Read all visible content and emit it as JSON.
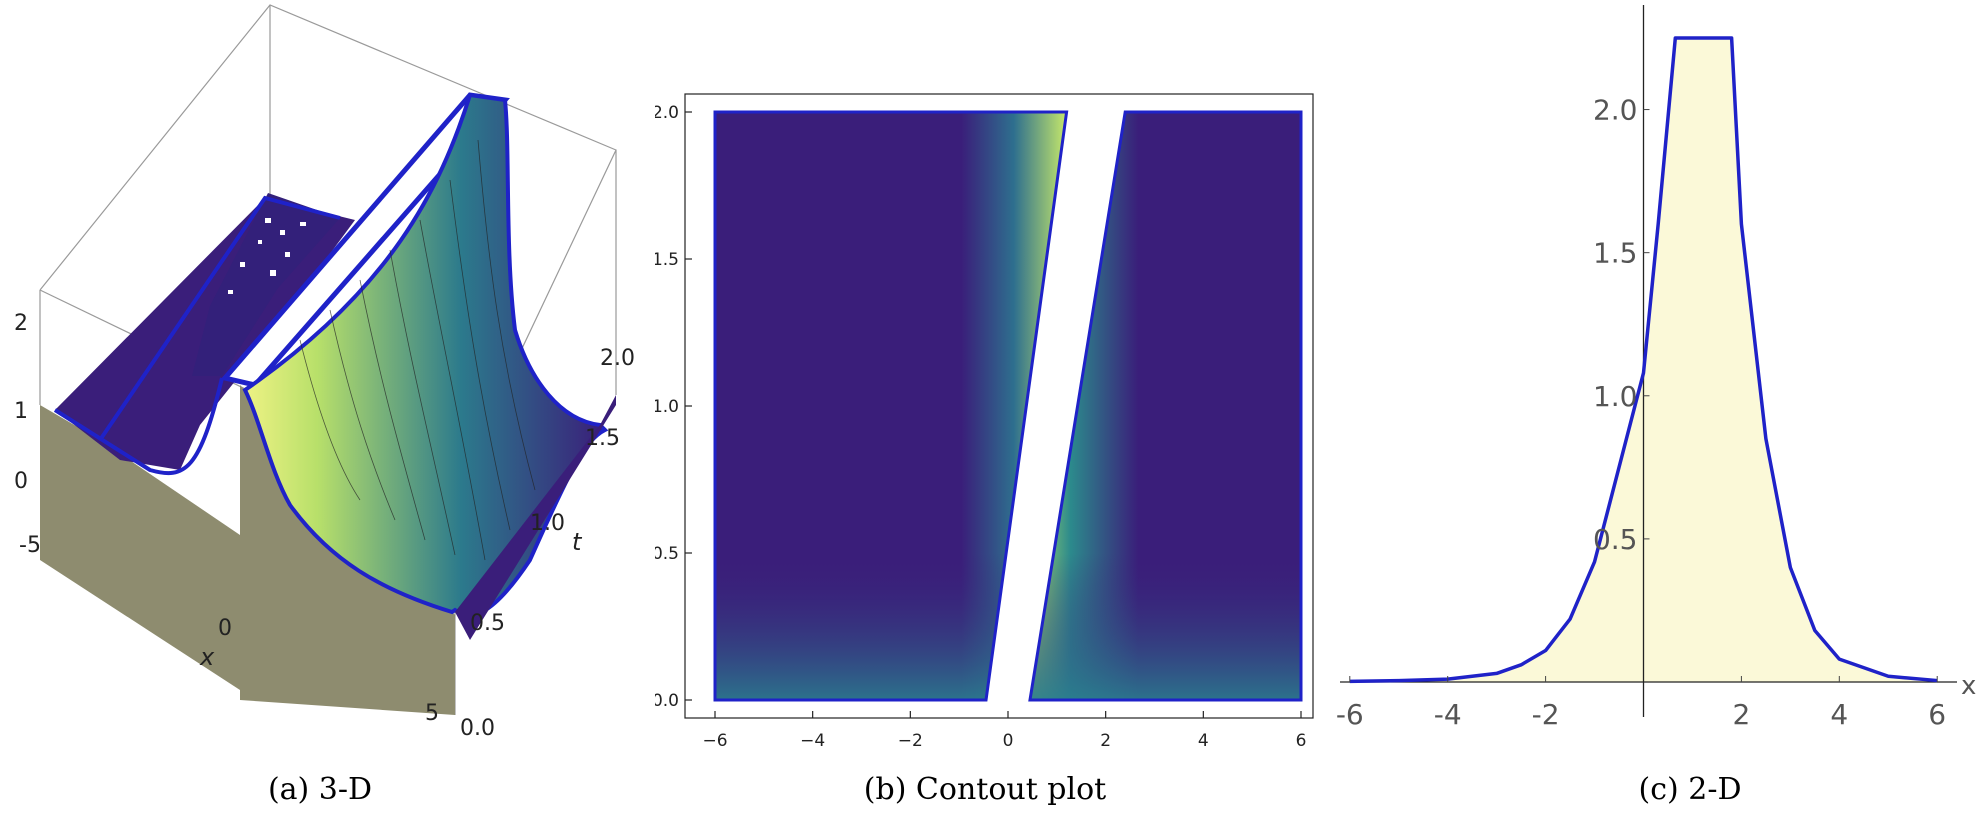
{
  "captions": {
    "a": "(a) 3-D",
    "b": "(b) Contout plot",
    "c": "(c) 2-D"
  },
  "colors": {
    "surface_low": "#3a1e7a",
    "surface_high": "#e9ef78",
    "curve": "#1f22c8",
    "fill_2d": "#fbf9d8",
    "wall": "#8e8c6f"
  },
  "chart_data": [
    {
      "type": "surface3d",
      "title": "",
      "xlabel": "x",
      "ylabel": "t",
      "zlabel": "",
      "x_ticks": [
        "-5",
        "0",
        "5"
      ],
      "t_ticks": [
        "0.0",
        "0.5",
        "1.0",
        "1.5",
        "2.0"
      ],
      "z_ticks": [
        "0",
        "1",
        "2"
      ],
      "xlim": [
        -6,
        6
      ],
      "tlim": [
        0,
        2
      ],
      "zlim": [
        0,
        2.25
      ]
    },
    {
      "type": "heatmap",
      "title": "",
      "xlabel": "",
      "ylabel": "",
      "xlim": [
        -6,
        6
      ],
      "ylim": [
        0,
        2
      ],
      "x_ticks": [
        "-6",
        "-4",
        "-2",
        "0",
        "2",
        "4",
        "6"
      ],
      "y_ticks": [
        "0.0",
        "0.5",
        "1.0",
        "1.5",
        "2.0"
      ],
      "gap_left_edge": [
        [
          -0.45,
          0
        ],
        [
          1.2,
          2
        ]
      ],
      "gap_right_edge": [
        [
          0.45,
          0
        ],
        [
          2.4,
          2
        ]
      ]
    },
    {
      "type": "line",
      "title": "",
      "xlabel": "x",
      "ylabel": "",
      "xlim": [
        -6.2,
        6.2
      ],
      "ylim": [
        0,
        2.25
      ],
      "x_ticks": [
        "-6",
        "-4",
        "-2",
        "2",
        "4",
        "6"
      ],
      "y_ticks": [
        "0.5",
        "1.0",
        "1.5",
        "2.0"
      ],
      "series": [
        {
          "x": [
            -6,
            -5,
            -4,
            -3,
            -2.5,
            -2,
            -1.5,
            -1,
            -0.5,
            0,
            0.3,
            0.65,
            1.8,
            2,
            2.5,
            3,
            3.5,
            4,
            5,
            6
          ],
          "y": [
            0.002,
            0.005,
            0.01,
            0.03,
            0.06,
            0.11,
            0.22,
            0.42,
            0.75,
            1.08,
            1.6,
            2.25,
            2.25,
            1.6,
            0.85,
            0.4,
            0.18,
            0.08,
            0.02,
            0.005
          ]
        }
      ]
    }
  ]
}
